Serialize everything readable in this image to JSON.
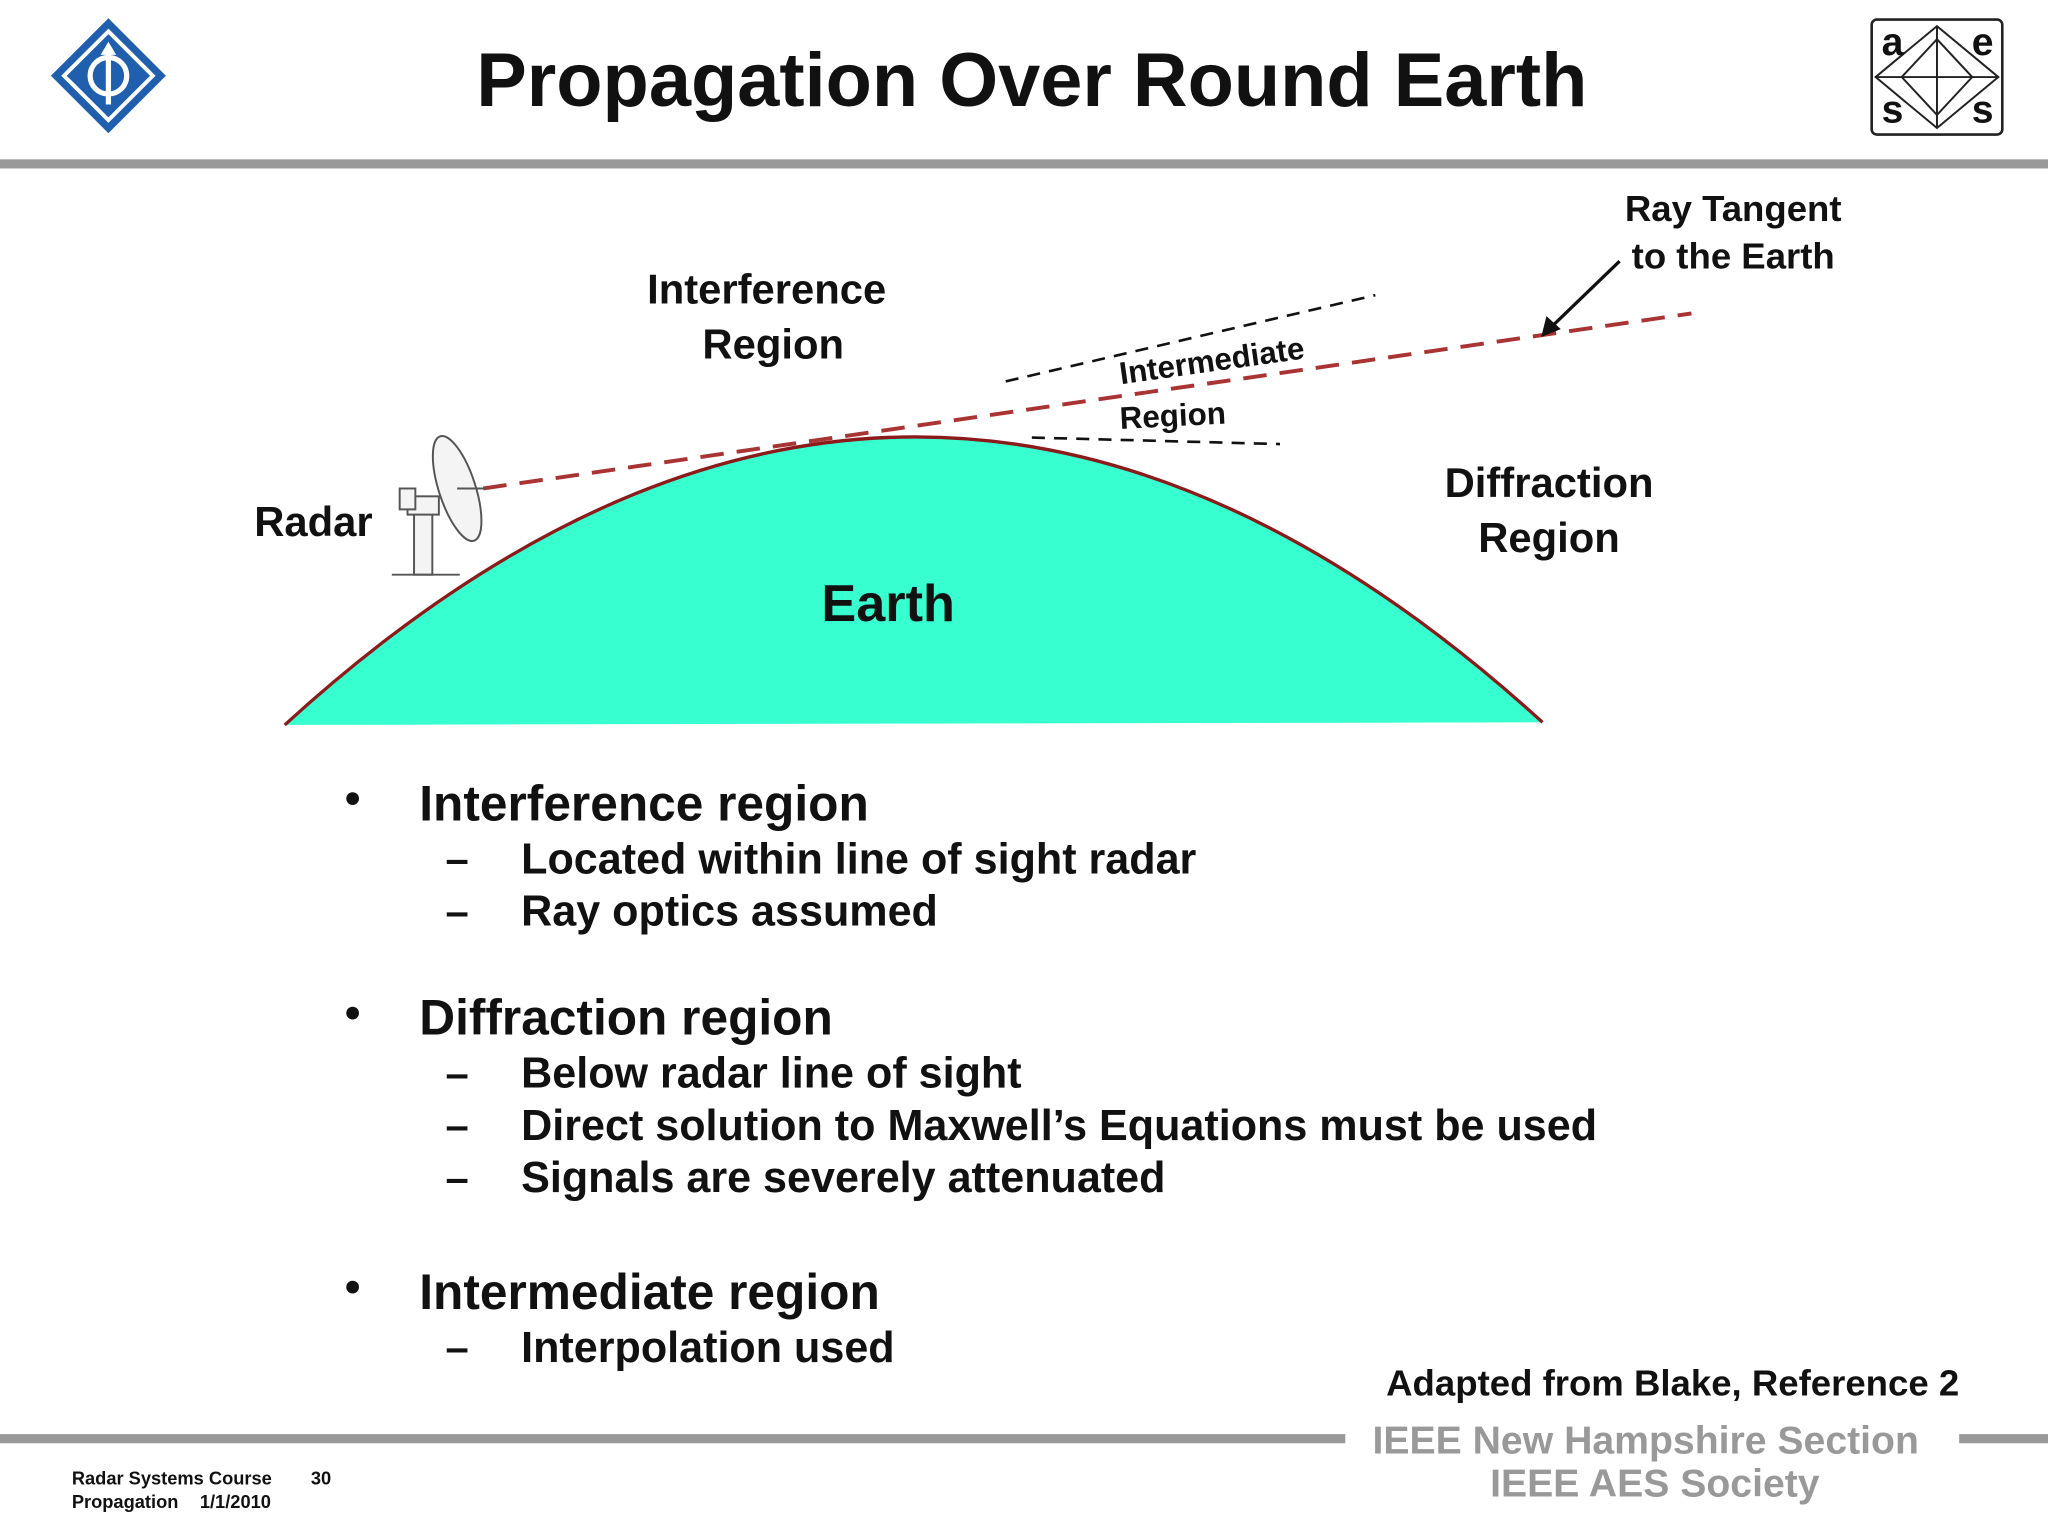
{
  "header": {
    "title": "Propagation Over Round Earth",
    "logo_letters": [
      "a",
      "e",
      "s",
      "s"
    ]
  },
  "diagram": {
    "ray_tangent": [
      "Ray Tangent",
      "to the Earth"
    ],
    "interference": [
      "Interference",
      "Region"
    ],
    "intermediate": [
      "Intermediate",
      "Region"
    ],
    "diffraction": [
      "Diffraction",
      "Region"
    ],
    "radar": "Radar",
    "earth": "Earth"
  },
  "bullets": [
    {
      "text": "Interference region",
      "items": [
        "Located within line of sight radar",
        "Ray optics assumed"
      ]
    },
    {
      "text": "Diffraction region",
      "items": [
        "Below radar line of sight",
        "Direct solution to Maxwell’s Equations must be used",
        "Signals are severely attenuated"
      ]
    },
    {
      "text": "Intermediate region",
      "items": [
        "Interpolation used"
      ]
    }
  ],
  "source": "Adapted from Blake, Reference 2",
  "footer": {
    "org": [
      "IEEE New Hampshire Section",
      "IEEE AES Society"
    ],
    "course": "Radar Systems Course",
    "page": "30",
    "topic": "Propagation",
    "date": "1/1/2010"
  }
}
